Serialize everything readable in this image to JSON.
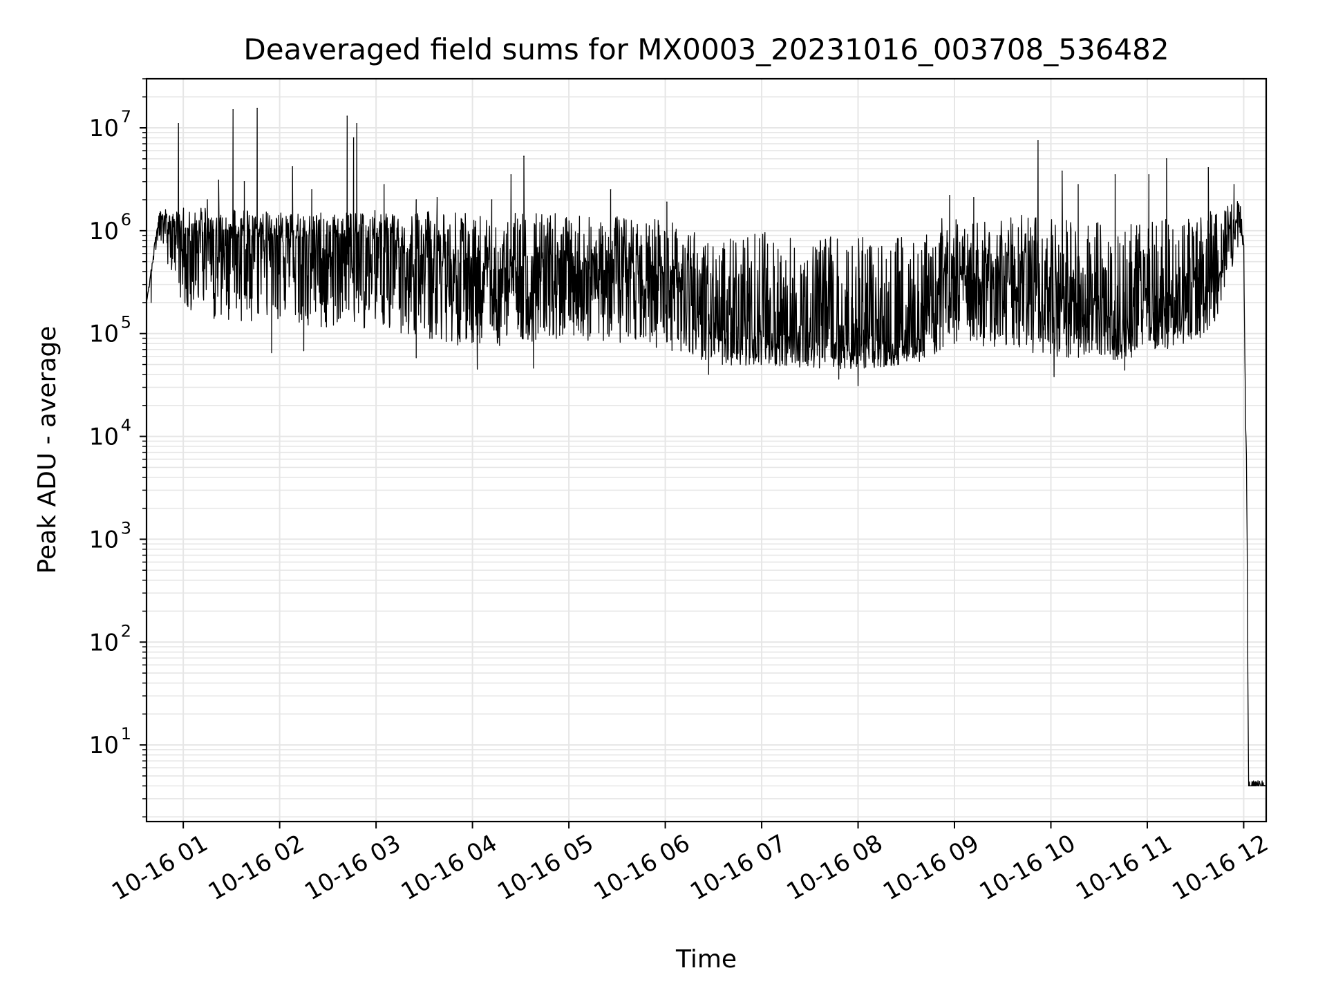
{
  "chart_data": {
    "type": "line",
    "title": "Deaveraged field sums for MX0003_20231016_003708_536482",
    "xlabel": "Time",
    "ylabel": "Peak ADU - average",
    "y_scale": "log",
    "ylim": [
      1.8,
      30000000
    ],
    "xlim": [
      "2023-10-16T00:37:08",
      "2023-10-16T12:14:00"
    ],
    "x_tick_labels": [
      "10-16 01",
      "10-16 02",
      "10-16 03",
      "10-16 04",
      "10-16 05",
      "10-16 06",
      "10-16 07",
      "10-16 08",
      "10-16 09",
      "10-16 10",
      "10-16 11",
      "10-16 12"
    ],
    "x_ticks": [
      "2023-10-16T01:00:00",
      "2023-10-16T02:00:00",
      "2023-10-16T03:00:00",
      "2023-10-16T04:00:00",
      "2023-10-16T05:00:00",
      "2023-10-16T06:00:00",
      "2023-10-16T07:00:00",
      "2023-10-16T08:00:00",
      "2023-10-16T09:00:00",
      "2023-10-16T10:00:00",
      "2023-10-16T11:00:00",
      "2023-10-16T12:00:00"
    ],
    "y_ticks": [
      {
        "value": 10,
        "base": "10",
        "exp": "1"
      },
      {
        "value": 100,
        "base": "10",
        "exp": "2"
      },
      {
        "value": 1000,
        "base": "10",
        "exp": "3"
      },
      {
        "value": 10000,
        "base": "10",
        "exp": "4"
      },
      {
        "value": 100000,
        "base": "10",
        "exp": "5"
      },
      {
        "value": 1000000,
        "base": "10",
        "exp": "6"
      },
      {
        "value": 10000000,
        "base": "10",
        "exp": "7"
      }
    ],
    "grid": true,
    "line_color": "#000000",
    "grid_color": "#e6e6e6",
    "envelope": {
      "x": [
        "2023-10-16T00:37:08",
        "2023-10-16T00:45:00",
        "2023-10-16T01:00:00",
        "2023-10-16T02:00:00",
        "2023-10-16T03:00:00",
        "2023-10-16T04:00:00",
        "2023-10-16T05:00:00",
        "2023-10-16T06:00:00",
        "2023-10-16T06:30:00",
        "2023-10-16T07:00:00",
        "2023-10-16T08:00:00",
        "2023-10-16T08:35:00",
        "2023-10-16T09:00:00",
        "2023-10-16T10:00:00",
        "2023-10-16T10:40:00",
        "2023-10-16T11:00:00",
        "2023-10-16T11:40:00",
        "2023-10-16T11:58:00",
        "2023-10-16T12:00:00",
        "2023-10-16T12:01:00",
        "2023-10-16T12:02:00",
        "2023-10-16T12:03:00",
        "2023-10-16T12:14:00"
      ],
      "center": [
        200000,
        1400000,
        900000,
        850000,
        800000,
        400000,
        450000,
        350000,
        120000,
        100000,
        80000,
        90000,
        350000,
        250000,
        120000,
        150000,
        350000,
        1500000,
        800000,
        30000,
        3000,
        4,
        4
      ],
      "low": [
        200000,
        900000,
        150000,
        120000,
        110000,
        70000,
        90000,
        70000,
        50000,
        48000,
        45000,
        50000,
        80000,
        60000,
        55000,
        60000,
        100000,
        800000,
        600000,
        20000,
        2000,
        4,
        4
      ],
      "high": [
        200000,
        1600000,
        1700000,
        1500000,
        1600000,
        1500000,
        1500000,
        1300000,
        900000,
        1000000,
        900000,
        1000000,
        1500000,
        1400000,
        1200000,
        1200000,
        1600000,
        2100000,
        1000000,
        40000,
        4000,
        4.5,
        4.5
      ]
    },
    "spikes": [
      {
        "x": "2023-10-16T00:57:00",
        "y": 11000000
      },
      {
        "x": "2023-10-16T01:15:00",
        "y": 2000000
      },
      {
        "x": "2023-10-16T01:22:00",
        "y": 3100000
      },
      {
        "x": "2023-10-16T01:31:00",
        "y": 15000000
      },
      {
        "x": "2023-10-16T01:46:00",
        "y": 15500000
      },
      {
        "x": "2023-10-16T01:38:00",
        "y": 3000000
      },
      {
        "x": "2023-10-16T02:08:00",
        "y": 4200000
      },
      {
        "x": "2023-10-16T02:20:00",
        "y": 2500000
      },
      {
        "x": "2023-10-16T02:42:00",
        "y": 13000000
      },
      {
        "x": "2023-10-16T02:46:00",
        "y": 8000000
      },
      {
        "x": "2023-10-16T02:48:00",
        "y": 11000000
      },
      {
        "x": "2023-10-16T03:05:00",
        "y": 2800000
      },
      {
        "x": "2023-10-16T03:25:00",
        "y": 2000000
      },
      {
        "x": "2023-10-16T03:38:00",
        "y": 2100000
      },
      {
        "x": "2023-10-16T04:12:00",
        "y": 2000000
      },
      {
        "x": "2023-10-16T04:24:00",
        "y": 3500000
      },
      {
        "x": "2023-10-16T04:32:00",
        "y": 5300000
      },
      {
        "x": "2023-10-16T05:26:00",
        "y": 2500000
      },
      {
        "x": "2023-10-16T06:01:00",
        "y": 1900000
      },
      {
        "x": "2023-10-16T08:57:00",
        "y": 2200000
      },
      {
        "x": "2023-10-16T09:12:00",
        "y": 2100000
      },
      {
        "x": "2023-10-16T09:52:00",
        "y": 7500000
      },
      {
        "x": "2023-10-16T10:07:00",
        "y": 3800000
      },
      {
        "x": "2023-10-16T10:17:00",
        "y": 2800000
      },
      {
        "x": "2023-10-16T10:40:00",
        "y": 3500000
      },
      {
        "x": "2023-10-16T11:01:00",
        "y": 3500000
      },
      {
        "x": "2023-10-16T11:12:00",
        "y": 5000000
      },
      {
        "x": "2023-10-16T11:38:00",
        "y": 4100000
      },
      {
        "x": "2023-10-16T11:54:00",
        "y": 2800000
      }
    ],
    "dips": [
      {
        "x": "2023-10-16T00:40:00",
        "y": 200000
      },
      {
        "x": "2023-10-16T01:55:00",
        "y": 65000
      },
      {
        "x": "2023-10-16T02:15:00",
        "y": 68000
      },
      {
        "x": "2023-10-16T03:25:00",
        "y": 58000
      },
      {
        "x": "2023-10-16T04:03:00",
        "y": 45000
      },
      {
        "x": "2023-10-16T04:38:00",
        "y": 46000
      },
      {
        "x": "2023-10-16T06:27:00",
        "y": 40000
      },
      {
        "x": "2023-10-16T07:48:00",
        "y": 36000
      },
      {
        "x": "2023-10-16T08:00:00",
        "y": 31000
      },
      {
        "x": "2023-10-16T10:02:00",
        "y": 38000
      },
      {
        "x": "2023-10-16T10:46:00",
        "y": 44000
      }
    ]
  }
}
